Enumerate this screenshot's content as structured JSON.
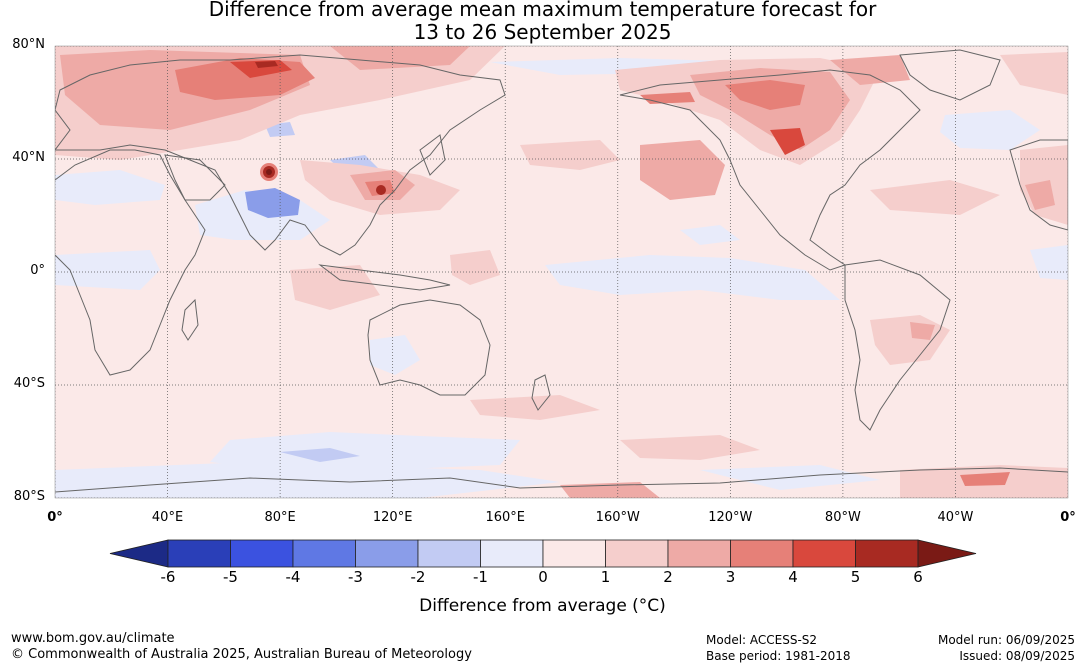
{
  "title": {
    "line1": "Difference from average mean maximum temperature forecast for",
    "line2": "13 to 26 September 2025"
  },
  "map": {
    "lat_labels": [
      "80°N",
      "40°N",
      "0°",
      "40°S",
      "80°S"
    ],
    "lat_values": [
      80,
      40,
      0,
      -40,
      -80
    ],
    "lon_labels": [
      "0°",
      "40°E",
      "80°E",
      "120°E",
      "160°E",
      "160°W",
      "120°W",
      "80°W",
      "40°W",
      "0°"
    ],
    "lon_values": [
      0,
      40,
      80,
      120,
      160,
      200,
      240,
      280,
      320,
      360
    ],
    "land_line_color": "#666666",
    "grid_line_color": "#555555"
  },
  "colorbar": {
    "ticks": [
      "-6",
      "-5",
      "-4",
      "-3",
      "-2",
      "-1",
      "0",
      "1",
      "2",
      "3",
      "4",
      "5",
      "6"
    ],
    "colors": [
      "#1c2a86",
      "#2a3fb8",
      "#3b52e0",
      "#5f78e4",
      "#8a9de9",
      "#c2cbf3",
      "#e8ebfa",
      "#fbe9e8",
      "#f5cecc",
      "#eeaaa6",
      "#e68078",
      "#d9483d",
      "#a82a22",
      "#7a1a15"
    ],
    "label": "Difference from average (°C)"
  },
  "footer": {
    "left_line1": "www.bom.gov.au/climate",
    "left_line2": "© Commonwealth of Australia 2025, Australian Bureau of Meteorology",
    "model": "Model: ACCESS-S2",
    "base_period": "Base period: 1981-2018",
    "model_run": "Model run: 06/09/2025",
    "issued": "Issued: 08/09/2025"
  }
}
